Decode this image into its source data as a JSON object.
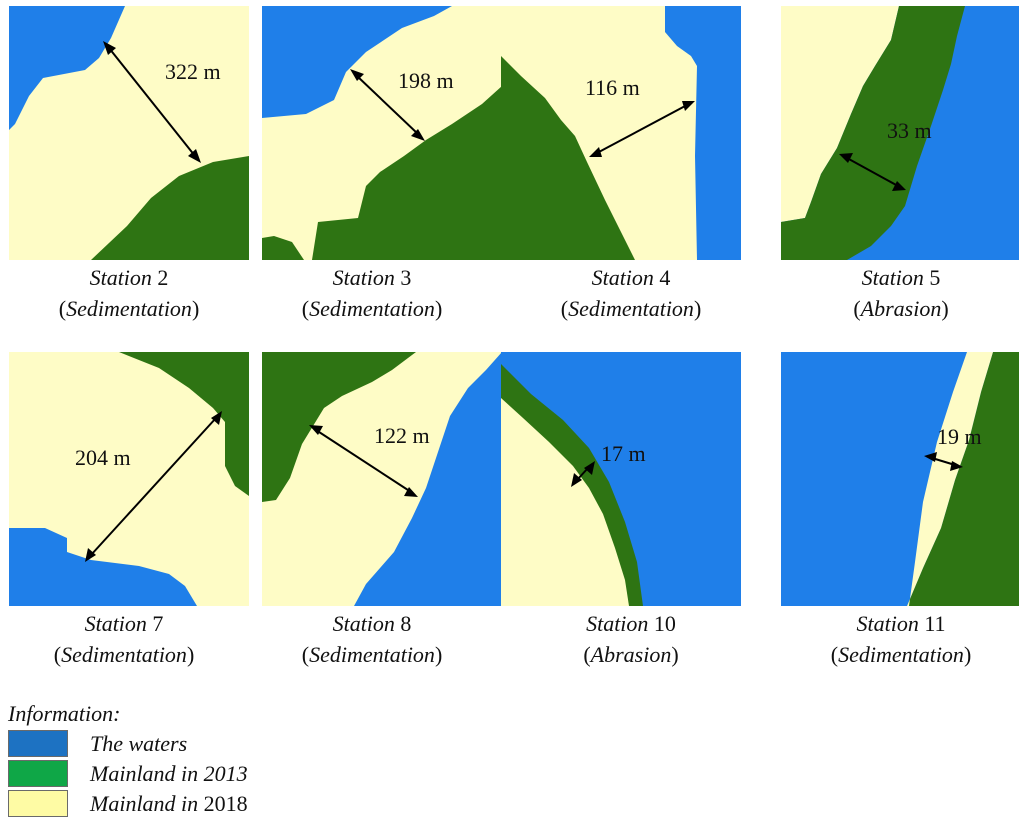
{
  "colors": {
    "water": "#1f7fe9",
    "mainland_2013": "#2e7413",
    "mainland_2018": "#fefcc6",
    "legend_water": "#1d72c2",
    "legend_2013": "#0fa747",
    "legend_2018": "#fefba4"
  },
  "stations": [
    {
      "number": "2",
      "distance": "322 m",
      "type": "Sedimentation"
    },
    {
      "number": "3",
      "distance": "198 m",
      "type": "Sedimentation"
    },
    {
      "number": "4",
      "distance": "116 m",
      "type": "Sedimentation"
    },
    {
      "number": "5",
      "distance": "33 m",
      "type": "Abrasion"
    },
    {
      "number": "7",
      "distance": "204 m",
      "type": "Sedimentation"
    },
    {
      "number": "8",
      "distance": "122 m",
      "type": "Sedimentation"
    },
    {
      "number": "10",
      "distance": "17 m",
      "type": "Abrasion"
    },
    {
      "number": "11",
      "distance": "19 m",
      "type": "Sedimentation"
    }
  ],
  "caption_word": "Station",
  "legend": {
    "title": "Information:",
    "items": [
      {
        "label": "The waters",
        "label_year": ""
      },
      {
        "label": "Mainland in 2013",
        "label_year": ""
      },
      {
        "label": "Mainland in ",
        "label_year": "2018"
      }
    ]
  }
}
